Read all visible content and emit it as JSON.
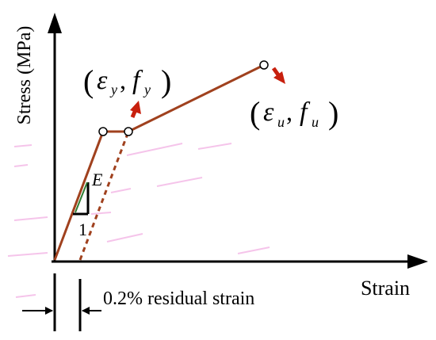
{
  "axes": {
    "y_label": "Stress (MPa)",
    "x_label": "Strain"
  },
  "annotations": {
    "modulus_symbol": "E",
    "slope_run": "1",
    "offset_note": "0.2% residual strain"
  },
  "points": {
    "yield": {
      "paren_open": "(",
      "eps": "ε",
      "eps_sub": "y",
      "comma": ",",
      "f": "f",
      "f_sub": "y",
      "paren_close": ")"
    },
    "ultimate": {
      "paren_open": "(",
      "eps": "ε",
      "eps_sub": "u",
      "comma": ",",
      "f": "f",
      "f_sub": "u",
      "paren_close": ")"
    }
  },
  "colors": {
    "curve": "#a0411e",
    "arrow_red": "#c8200e",
    "triangle_green": "#2e7d32",
    "axis": "#000000",
    "artifact_pink": "#f3b6e6"
  }
}
